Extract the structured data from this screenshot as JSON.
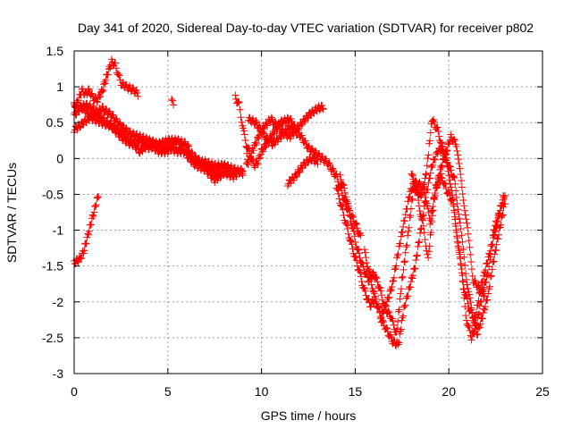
{
  "chart_data": {
    "type": "scatter",
    "title": "Day 341 of 2020, Sidereal Day-to-day VTEC variation (SDTVAR) for receiver p802",
    "xlabel": "GPS time / hours",
    "ylabel": "SDTVAR / TECUs",
    "xlim": [
      0,
      25
    ],
    "ylim": [
      -3,
      1.5
    ],
    "xticks": [
      0,
      5,
      10,
      15,
      20,
      25
    ],
    "yticks": [
      1.5,
      1,
      0.5,
      0,
      -0.5,
      -1,
      -1.5,
      -2,
      -2.5,
      -3
    ],
    "grid": true,
    "marker": "plus",
    "series": [
      {
        "name": "p802",
        "color": "#ff0000",
        "tracks": [
          [
            [
              0,
              0.72
            ],
            [
              0.2,
              0.8
            ],
            [
              0.4,
              0.95
            ],
            [
              0.6,
              0.9
            ],
            [
              0.8,
              0.95
            ],
            [
              1.0,
              0.85
            ],
            [
              1.2,
              0.8
            ],
            [
              1.5,
              0.95
            ],
            [
              1.8,
              1.2
            ],
            [
              2.0,
              1.35
            ],
            [
              2.2,
              1.3
            ],
            [
              2.5,
              1.05
            ],
            [
              2.8,
              1.0
            ],
            [
              3.2,
              0.95
            ],
            [
              3.4,
              0.9
            ]
          ],
          [
            [
              0,
              0.6
            ],
            [
              0.3,
              0.7
            ],
            [
              0.6,
              0.75
            ],
            [
              1.0,
              0.7
            ],
            [
              1.5,
              0.55
            ],
            [
              2.0,
              0.45
            ],
            [
              2.5,
              0.3
            ],
            [
              3.0,
              0.2
            ],
            [
              3.5,
              0.25
            ],
            [
              4.0,
              0.15
            ],
            [
              4.5,
              0.2
            ],
            [
              5.0,
              0.15
            ],
            [
              5.5,
              0.1
            ],
            [
              6.0,
              0.1
            ],
            [
              6.5,
              0.0
            ],
            [
              7.0,
              -0.1
            ],
            [
              7.5,
              -0.2
            ],
            [
              8.0,
              -0.1
            ],
            [
              8.5,
              -0.15
            ],
            [
              9.0,
              -0.2
            ]
          ],
          [
            [
              0,
              0.4
            ],
            [
              0.5,
              0.5
            ],
            [
              1.0,
              0.6
            ],
            [
              1.5,
              0.7
            ],
            [
              2.0,
              0.6
            ],
            [
              2.5,
              0.45
            ],
            [
              3.0,
              0.35
            ],
            [
              3.5,
              0.3
            ],
            [
              4.0,
              0.25
            ],
            [
              4.5,
              0.2
            ],
            [
              5.0,
              0.25
            ],
            [
              5.5,
              0.25
            ],
            [
              6.0,
              0.05
            ],
            [
              6.5,
              -0.1
            ],
            [
              7.0,
              -0.15
            ],
            [
              7.5,
              -0.3
            ],
            [
              8.0,
              -0.2
            ],
            [
              8.5,
              -0.25
            ],
            [
              9.0,
              -0.15
            ]
          ],
          [
            [
              0,
              0.75
            ],
            [
              0.5,
              0.7
            ],
            [
              1.0,
              0.55
            ],
            [
              1.5,
              0.5
            ],
            [
              2.0,
              0.45
            ],
            [
              2.5,
              0.35
            ],
            [
              3.0,
              0.25
            ],
            [
              3.5,
              0.1
            ],
            [
              4.0,
              0.2
            ],
            [
              4.5,
              0.1
            ],
            [
              5.0,
              0.1
            ],
            [
              5.5,
              0.25
            ],
            [
              6.0,
              0.2
            ],
            [
              6.5,
              -0.05
            ],
            [
              7.0,
              -0.05
            ],
            [
              7.5,
              -0.1
            ],
            [
              8.0,
              -0.1
            ],
            [
              8.5,
              -0.15
            ],
            [
              9.0,
              -0.2
            ]
          ],
          [
            [
              0,
              -1.45
            ],
            [
              0.3,
              -1.4
            ],
            [
              0.5,
              -1.3
            ],
            [
              0.8,
              -1.0
            ],
            [
              1.1,
              -0.7
            ],
            [
              1.3,
              -0.5
            ]
          ],
          [
            [
              5.2,
              0.8
            ],
            [
              5.3,
              0.78
            ]
          ],
          [
            [
              8.6,
              0.85
            ],
            [
              8.8,
              0.75
            ],
            [
              8.9,
              0.6
            ],
            [
              9.1,
              0.3
            ],
            [
              9.3,
              -0.05
            ]
          ],
          [
            [
              9.2,
              0.2
            ],
            [
              9.4,
              0.05
            ],
            [
              9.6,
              -0.1
            ],
            [
              9.8,
              -0.05
            ],
            [
              10.0,
              0.1
            ],
            [
              10.5,
              0.3
            ],
            [
              11.0,
              0.5
            ],
            [
              11.5,
              0.55
            ],
            [
              12.0,
              0.35
            ],
            [
              12.5,
              0.15
            ],
            [
              13.0,
              0.05
            ],
            [
              13.5,
              -0.05
            ],
            [
              14.0,
              -0.25
            ],
            [
              14.5,
              -0.65
            ],
            [
              15.0,
              -0.9
            ],
            [
              15.3,
              -1.1
            ]
          ],
          [
            [
              9.2,
              -0.1
            ],
            [
              9.5,
              0.1
            ],
            [
              10.0,
              0.4
            ],
            [
              10.5,
              0.55
            ],
            [
              11.0,
              0.4
            ],
            [
              11.5,
              0.3
            ],
            [
              12.0,
              0.45
            ],
            [
              12.5,
              0.6
            ],
            [
              13.0,
              0.7
            ],
            [
              13.3,
              0.72
            ]
          ],
          [
            [
              9.3,
              0.55
            ],
            [
              9.7,
              0.5
            ],
            [
              10.2,
              0.3
            ],
            [
              10.6,
              0.2
            ],
            [
              11.0,
              0.3
            ],
            [
              11.5,
              0.45
            ],
            [
              11.9,
              0.35
            ]
          ],
          [
            [
              11.4,
              -0.35
            ],
            [
              11.8,
              -0.25
            ],
            [
              12.2,
              -0.1
            ],
            [
              12.6,
              0.0
            ],
            [
              13.0,
              -0.05
            ]
          ],
          [
            [
              14.0,
              -0.4
            ],
            [
              14.3,
              -0.7
            ],
            [
              14.6,
              -1.0
            ],
            [
              14.9,
              -1.3
            ],
            [
              15.2,
              -1.55
            ],
            [
              15.5,
              -1.85
            ],
            [
              15.8,
              -2.05
            ],
            [
              16.1,
              -1.95
            ],
            [
              16.4,
              -2.25
            ],
            [
              16.7,
              -2.4
            ],
            [
              17.0,
              -2.55
            ],
            [
              17.3,
              -2.6
            ],
            [
              17.6,
              -2.1
            ],
            [
              17.9,
              -1.8
            ],
            [
              18.2,
              -1.5
            ],
            [
              18.5,
              -1.0
            ],
            [
              18.8,
              -0.5
            ],
            [
              19.1,
              -0.1
            ],
            [
              19.4,
              0.1
            ],
            [
              19.7,
              0.15
            ],
            [
              20.0,
              -0.1
            ],
            [
              20.3,
              -0.3
            ],
            [
              20.6,
              -0.9
            ],
            [
              20.9,
              -1.6
            ],
            [
              21.2,
              -2.1
            ],
            [
              21.5,
              -2.45
            ],
            [
              21.8,
              -2.2
            ],
            [
              22.1,
              -1.9
            ],
            [
              22.4,
              -1.4
            ],
            [
              22.7,
              -1.0
            ],
            [
              23.0,
              -0.6
            ]
          ],
          [
            [
              14.2,
              -0.25
            ],
            [
              14.5,
              -0.5
            ],
            [
              14.8,
              -0.9
            ],
            [
              15.1,
              -1.25
            ],
            [
              15.4,
              -1.5
            ],
            [
              15.7,
              -1.7
            ],
            [
              16.0,
              -1.6
            ],
            [
              16.3,
              -1.8
            ],
            [
              16.6,
              -2.1
            ],
            [
              16.9,
              -2.2
            ],
            [
              17.2,
              -2.45
            ],
            [
              17.5,
              -1.7
            ],
            [
              17.8,
              -1.1
            ],
            [
              18.1,
              -0.45
            ],
            [
              18.4,
              -0.35
            ],
            [
              18.7,
              -0.45
            ],
            [
              19.0,
              -0.9
            ],
            [
              19.3,
              -0.4
            ],
            [
              19.6,
              -0.25
            ],
            [
              19.9,
              -0.45
            ],
            [
              20.2,
              -0.6
            ],
            [
              20.5,
              -1.2
            ],
            [
              20.8,
              -1.8
            ],
            [
              21.1,
              -2.1
            ],
            [
              21.4,
              -2.25
            ],
            [
              21.7,
              -1.8
            ],
            [
              22.0,
              -1.5
            ],
            [
              22.3,
              -1.2
            ],
            [
              22.6,
              -0.9
            ],
            [
              22.9,
              -0.55
            ]
          ],
          [
            [
              15.5,
              -1.3
            ],
            [
              15.8,
              -1.65
            ],
            [
              16.1,
              -2.0
            ],
            [
              16.4,
              -2.2
            ],
            [
              16.7,
              -2.0
            ],
            [
              17.0,
              -1.75
            ],
            [
              17.3,
              -1.3
            ],
            [
              17.6,
              -0.9
            ],
            [
              17.9,
              -0.5
            ],
            [
              18.2,
              -0.3
            ],
            [
              18.5,
              -0.55
            ],
            [
              18.8,
              -0.2
            ],
            [
              19.1,
              0.55
            ],
            [
              19.4,
              0.4
            ],
            [
              19.7,
              0.1
            ],
            [
              20.0,
              -0.2
            ],
            [
              20.3,
              -0.75
            ],
            [
              20.6,
              -1.4
            ],
            [
              20.9,
              -2.2
            ],
            [
              21.2,
              -2.5
            ],
            [
              21.5,
              -2.3
            ],
            [
              21.8,
              -1.85
            ],
            [
              22.1,
              -1.6
            ],
            [
              22.4,
              -1.0
            ],
            [
              22.7,
              -0.75
            ],
            [
              23.0,
              -0.5
            ]
          ],
          [
            [
              18.0,
              -0.2
            ],
            [
              18.3,
              -0.5
            ],
            [
              18.6,
              -0.9
            ],
            [
              18.9,
              -1.4
            ],
            [
              19.2,
              -0.6
            ],
            [
              19.5,
              -0.2
            ],
            [
              19.8,
              0.05
            ],
            [
              20.1,
              0.3
            ],
            [
              20.4,
              0.2
            ],
            [
              20.7,
              -0.4
            ],
            [
              21.0,
              -1.0
            ],
            [
              21.3,
              -1.7
            ],
            [
              21.6,
              -1.8
            ],
            [
              21.9,
              -1.9
            ]
          ]
        ]
      }
    ]
  }
}
